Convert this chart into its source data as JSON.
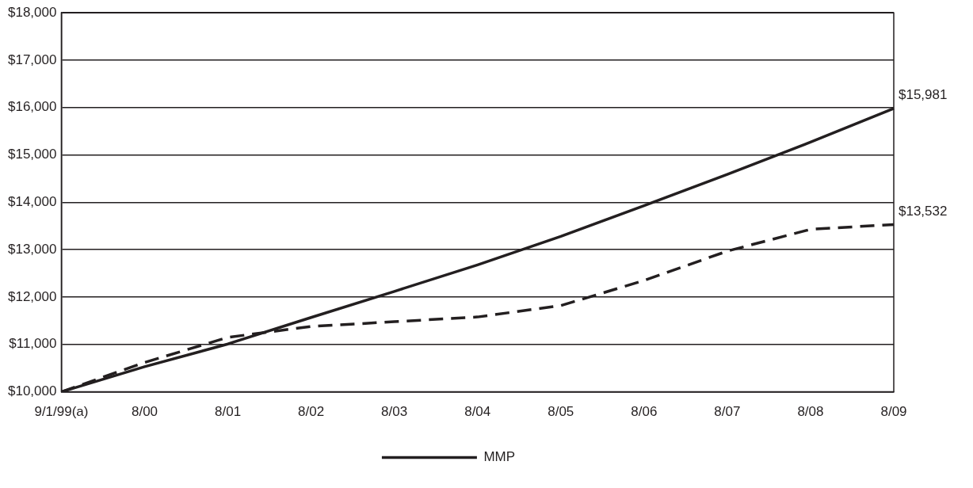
{
  "chart_data": {
    "type": "line",
    "categories": [
      "9/1/99(a)",
      "8/00",
      "8/01",
      "8/02",
      "8/03",
      "8/04",
      "8/05",
      "8/06",
      "8/07",
      "8/08",
      "8/09"
    ],
    "series": [
      {
        "name": "MMP",
        "color": "#231f20",
        "line_style": "solid",
        "values": [
          10000,
          10530,
          11010,
          11570,
          12120,
          12680,
          13280,
          13930,
          14590,
          15270,
          15981
        ],
        "value_labels": [
          null,
          null,
          null,
          null,
          null,
          null,
          null,
          null,
          null,
          null,
          "$15,981"
        ]
      },
      {
        "color": "#231f20",
        "line_style": "dashed",
        "values": [
          10000,
          10620,
          11150,
          11380,
          11480,
          11580,
          11820,
          12350,
          12970,
          13430,
          13532
        ],
        "value_labels": [
          null,
          null,
          null,
          null,
          null,
          null,
          null,
          null,
          null,
          null,
          "$13,532"
        ]
      }
    ],
    "ylim": [
      10000,
      18000
    ],
    "yticks": [
      {
        "value": 10000,
        "label": "$10,000"
      },
      {
        "value": 11000,
        "label": "$11,000"
      },
      {
        "value": 12000,
        "label": "$12,000"
      },
      {
        "value": 13000,
        "label": "$13,000"
      },
      {
        "value": 14000,
        "label": "$14,000"
      },
      {
        "value": 15000,
        "label": "$15,000"
      },
      {
        "value": 16000,
        "label": "$16,000"
      },
      {
        "value": 17000,
        "label": "$17,000"
      },
      {
        "value": 18000,
        "label": "$18,000"
      }
    ],
    "grid": "y",
    "legend": "bottom",
    "marker": "none"
  }
}
